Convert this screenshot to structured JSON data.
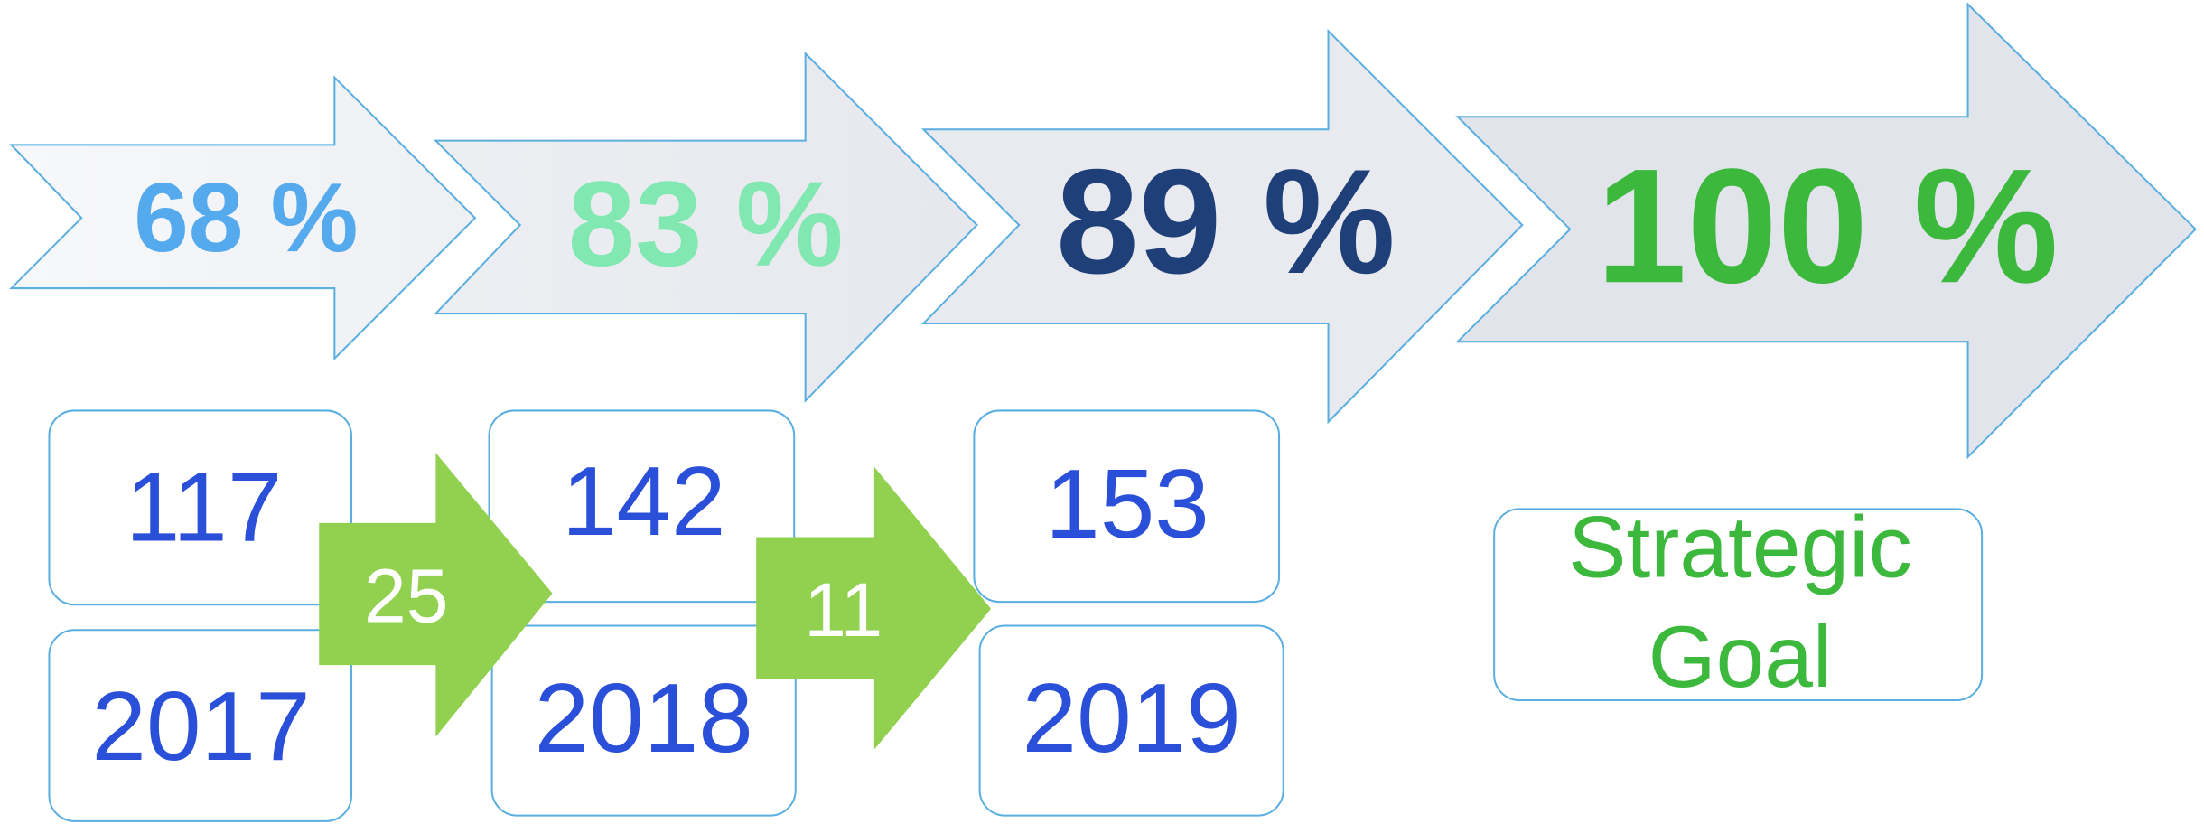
{
  "arrows": [
    {
      "label": "68 %"
    },
    {
      "label": "83 %"
    },
    {
      "label": "89 %"
    },
    {
      "label": "100 %"
    }
  ],
  "years": [
    {
      "count": "117",
      "year": "2017"
    },
    {
      "count": "142",
      "year": "2018"
    },
    {
      "count": "153",
      "year": "2019"
    }
  ],
  "increases": [
    "25",
    "11"
  ],
  "goal": {
    "lines": [
      "Strategic",
      "Goal"
    ]
  }
}
